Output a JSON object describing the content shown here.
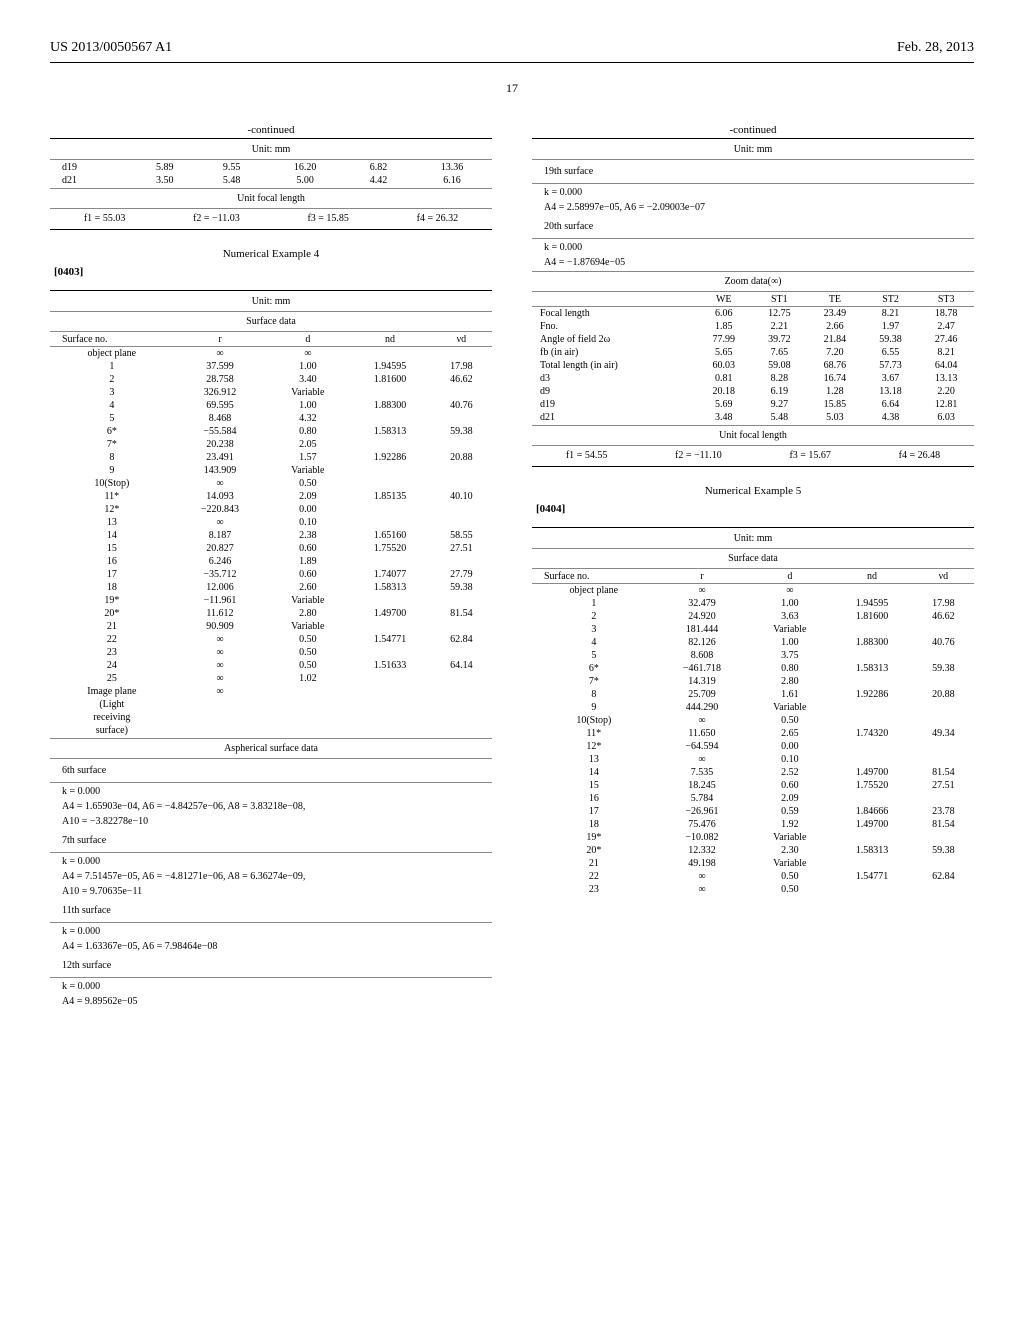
{
  "header": {
    "pubnum": "US 2013/0050567 A1",
    "date": "Feb. 28, 2013"
  },
  "pagenum": "17",
  "left": {
    "continued": "-continued",
    "unit": "Unit: mm",
    "cont_rows": [
      [
        "d19",
        "5.89",
        "9.55",
        "16.20",
        "6.82",
        "13.36"
      ],
      [
        "d21",
        "3.50",
        "5.48",
        "5.00",
        "4.42",
        "6.16"
      ]
    ],
    "ufl_title": "Unit focal length",
    "ufl": [
      "f1 = 55.03",
      "f2 = −11.03",
      "f3 = 15.85",
      "f4 = 26.32"
    ],
    "num_ex4_title": "Numerical Example 4",
    "para403": "[0403]",
    "surf_header": "Surface data",
    "surf_cols": [
      "Surface no.",
      "r",
      "d",
      "nd",
      "νd"
    ],
    "surf_rows": [
      [
        "object plane",
        "∞",
        "∞",
        "",
        ""
      ],
      [
        "1",
        "37.599",
        "1.00",
        "1.94595",
        "17.98"
      ],
      [
        "2",
        "28.758",
        "3.40",
        "1.81600",
        "46.62"
      ],
      [
        "3",
        "326.912",
        "Variable",
        "",
        ""
      ],
      [
        "4",
        "69.595",
        "1.00",
        "1.88300",
        "40.76"
      ],
      [
        "5",
        "8.468",
        "4.32",
        "",
        ""
      ],
      [
        "6*",
        "−55.584",
        "0.80",
        "1.58313",
        "59.38"
      ],
      [
        "7*",
        "20.238",
        "2.05",
        "",
        ""
      ],
      [
        "8",
        "23.491",
        "1.57",
        "1.92286",
        "20.88"
      ],
      [
        "9",
        "143.909",
        "Variable",
        "",
        ""
      ],
      [
        "10(Stop)",
        "∞",
        "0.50",
        "",
        ""
      ],
      [
        "11*",
        "14.093",
        "2.09",
        "1.85135",
        "40.10"
      ],
      [
        "12*",
        "−220.843",
        "0.00",
        "",
        ""
      ],
      [
        "13",
        "∞",
        "0.10",
        "",
        ""
      ],
      [
        "14",
        "8.187",
        "2.38",
        "1.65160",
        "58.55"
      ],
      [
        "15",
        "20.827",
        "0.60",
        "1.75520",
        "27.51"
      ],
      [
        "16",
        "6.246",
        "1.89",
        "",
        ""
      ],
      [
        "17",
        "−35.712",
        "0.60",
        "1.74077",
        "27.79"
      ],
      [
        "18",
        "12.006",
        "2.60",
        "1.58313",
        "59.38"
      ],
      [
        "19*",
        "−11.961",
        "Variable",
        "",
        ""
      ],
      [
        "20*",
        "11.612",
        "2.80",
        "1.49700",
        "81.54"
      ],
      [
        "21",
        "90.909",
        "Variable",
        "",
        ""
      ],
      [
        "22",
        "∞",
        "0.50",
        "1.54771",
        "62.84"
      ],
      [
        "23",
        "∞",
        "0.50",
        "",
        ""
      ],
      [
        "24",
        "∞",
        "0.50",
        "1.51633",
        "64.14"
      ],
      [
        "25",
        "∞",
        "1.02",
        "",
        ""
      ],
      [
        "Image plane",
        "∞",
        "",
        "",
        ""
      ],
      [
        "(Light",
        "",
        "",
        "",
        ""
      ],
      [
        "receiving",
        "",
        "",
        "",
        ""
      ],
      [
        "surface)",
        "",
        "",
        "",
        ""
      ]
    ],
    "asph_title": "Aspherical surface data",
    "asph_blocks": [
      {
        "title": "6th surface",
        "lines": [
          "k = 0.000",
          "A4 = 1.65903e−04, A6 = −4.84257e−06, A8 = 3.83218e−08,",
          "A10 = −3.82278e−10"
        ]
      },
      {
        "title": "7th surface",
        "lines": [
          "k = 0.000",
          "A4 = 7.51457e−05, A6 = −4.81271e−06, A8 = 6.36274e−09,",
          "A10 = 9.70635e−11"
        ]
      },
      {
        "title": "11th surface",
        "lines": [
          "k = 0.000",
          "A4 = 1.63367e−05, A6 = 7.98464e−08"
        ]
      },
      {
        "title": "12th surface",
        "lines": [
          "k = 0.000",
          "A4 = 9.89562e−05"
        ]
      }
    ]
  },
  "right": {
    "continued": "-continued",
    "unit": "Unit: mm",
    "asph_blocks": [
      {
        "title": "19th surface",
        "lines": [
          "k = 0.000",
          "A4 = 2.58997e−05, A6 = −2.09003e−07"
        ]
      },
      {
        "title": "20th surface",
        "lines": [
          "k = 0.000",
          "A4 = −1.87694e−05"
        ]
      }
    ],
    "zoom_title": "Zoom data(∞)",
    "zoom_cols": [
      "",
      "WE",
      "ST1",
      "TE",
      "ST2",
      "ST3"
    ],
    "zoom_rows": [
      [
        "Focal length",
        "6.06",
        "12.75",
        "23.49",
        "8.21",
        "18.78"
      ],
      [
        "Fno.",
        "1.85",
        "2.21",
        "2.66",
        "1.97",
        "2.47"
      ],
      [
        "Angle of field 2ω",
        "77.99",
        "39.72",
        "21.84",
        "59.38",
        "27.46"
      ],
      [
        "fb (in air)",
        "5.65",
        "7.65",
        "7.20",
        "6.55",
        "8.21"
      ],
      [
        "Total length (in air)",
        "60.03",
        "59.08",
        "68.76",
        "57.73",
        "64.04"
      ],
      [
        "d3",
        "0.81",
        "8.28",
        "16.74",
        "3.67",
        "13.13"
      ],
      [
        "d9",
        "20.18",
        "6.19",
        "1.28",
        "13.18",
        "2.20"
      ],
      [
        "d19",
        "5.69",
        "9.27",
        "15.85",
        "6.64",
        "12.81"
      ],
      [
        "d21",
        "3.48",
        "5.48",
        "5.03",
        "4.38",
        "6.03"
      ]
    ],
    "ufl_title": "Unit focal length",
    "ufl": [
      "f1 = 54.55",
      "f2 = −11.10",
      "f3 = 15.67",
      "f4 = 26.48"
    ],
    "num_ex5_title": "Numerical Example 5",
    "para404": "[0404]",
    "surf_header": "Surface data",
    "surf_cols": [
      "Surface no.",
      "r",
      "d",
      "nd",
      "νd"
    ],
    "surf_rows": [
      [
        "object plane",
        "∞",
        "∞",
        "",
        ""
      ],
      [
        "1",
        "32.479",
        "1.00",
        "1.94595",
        "17.98"
      ],
      [
        "2",
        "24.920",
        "3.63",
        "1.81600",
        "46.62"
      ],
      [
        "3",
        "181.444",
        "Variable",
        "",
        ""
      ],
      [
        "4",
        "82.126",
        "1.00",
        "1.88300",
        "40.76"
      ],
      [
        "5",
        "8.608",
        "3.75",
        "",
        ""
      ],
      [
        "6*",
        "−461.718",
        "0.80",
        "1.58313",
        "59.38"
      ],
      [
        "7*",
        "14.319",
        "2.80",
        "",
        ""
      ],
      [
        "8",
        "25.709",
        "1.61",
        "1.92286",
        "20.88"
      ],
      [
        "9",
        "444.290",
        "Variable",
        "",
        ""
      ],
      [
        "10(Stop)",
        "∞",
        "0.50",
        "",
        ""
      ],
      [
        "11*",
        "11.650",
        "2.65",
        "1.74320",
        "49.34"
      ],
      [
        "12*",
        "−64.594",
        "0.00",
        "",
        ""
      ],
      [
        "13",
        "∞",
        "0.10",
        "",
        ""
      ],
      [
        "14",
        "7.535",
        "2.52",
        "1.49700",
        "81.54"
      ],
      [
        "15",
        "18.245",
        "0.60",
        "1.75520",
        "27.51"
      ],
      [
        "16",
        "5.784",
        "2.09",
        "",
        ""
      ],
      [
        "17",
        "−26.961",
        "0.59",
        "1.84666",
        "23.78"
      ],
      [
        "18",
        "75.476",
        "1.92",
        "1.49700",
        "81.54"
      ],
      [
        "19*",
        "−10.082",
        "Variable",
        "",
        ""
      ],
      [
        "20*",
        "12.332",
        "2.30",
        "1.58313",
        "59.38"
      ],
      [
        "21",
        "49.198",
        "Variable",
        "",
        ""
      ],
      [
        "22",
        "∞",
        "0.50",
        "1.54771",
        "62.84"
      ],
      [
        "23",
        "∞",
        "0.50",
        "",
        ""
      ]
    ]
  }
}
